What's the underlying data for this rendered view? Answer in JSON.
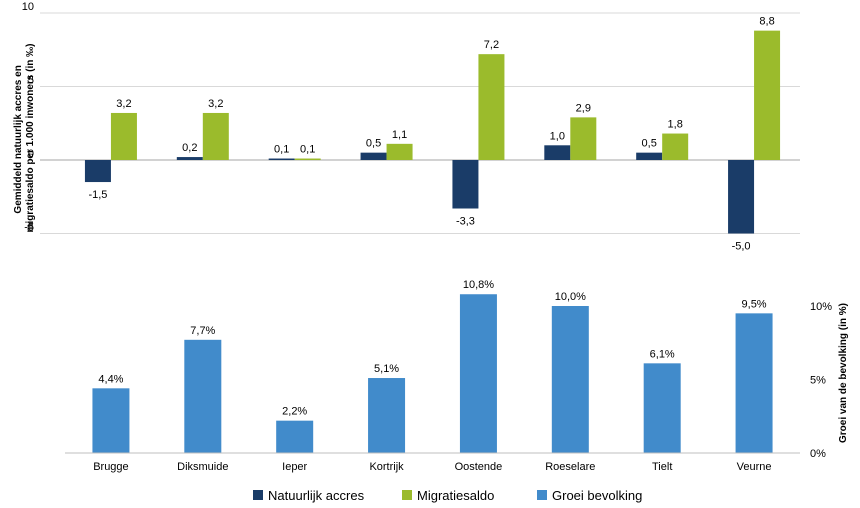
{
  "chart_data": [
    {
      "type": "bar",
      "categories": [
        "Brugge",
        "Diksmuide",
        "Ieper",
        "Kortrijk",
        "Oostende",
        "Roeselare",
        "Tielt",
        "Veurne"
      ],
      "ylabel_lines": [
        "Gemiddeld natuurlijk accres en",
        "migratiesaldo per 1.000 inwoners (in ‰)"
      ],
      "ylim": [
        -5,
        10
      ],
      "yticks": [
        10,
        5,
        0,
        -5
      ],
      "ytick_labels": [
        "10",
        "5",
        "0",
        "-5"
      ],
      "grid": true,
      "series": [
        {
          "name": "Natuurlijk accres",
          "color": "#1a3c68",
          "values": [
            -1.5,
            0.2,
            0.1,
            0.5,
            -3.3,
            1.0,
            0.5,
            -5.0
          ],
          "labels": [
            "-1,5",
            "0,2",
            "0,1",
            "0,5",
            "-3,3",
            "1,0",
            "0,5",
            "-5,0"
          ]
        },
        {
          "name": "Migratiesaldo",
          "color": "#9bbb2c",
          "values": [
            3.2,
            3.2,
            0.1,
            1.1,
            7.2,
            2.9,
            1.8,
            8.8
          ],
          "labels": [
            "3,2",
            "3,2",
            "0,1",
            "1,1",
            "7,2",
            "2,9",
            "1,8",
            "8,8"
          ]
        }
      ]
    },
    {
      "type": "bar",
      "categories": [
        "Brugge",
        "Diksmuide",
        "Ieper",
        "Kortrijk",
        "Oostende",
        "Roeselare",
        "Tielt",
        "Veurne"
      ],
      "ylabel": "Groei van de bevolking (in %)",
      "ylim": [
        0,
        10
      ],
      "yticks": [
        0,
        5,
        10
      ],
      "ytick_labels": [
        "0%",
        "5%",
        "10%"
      ],
      "y_axis_side": "right",
      "series": [
        {
          "name": "Groei bevolking",
          "color": "#418bcb",
          "values": [
            4.4,
            7.7,
            2.2,
            5.1,
            10.8,
            10.0,
            6.1,
            9.5
          ],
          "labels": [
            "4,4%",
            "7,7%",
            "2,2%",
            "5,1%",
            "10,8%",
            "10,0%",
            "6,1%",
            "9,5%"
          ]
        }
      ]
    }
  ],
  "legend": {
    "placement": "bottom",
    "items": [
      {
        "label": "Natuurlijk accres",
        "color": "#1a3c68"
      },
      {
        "label": "Migratiesaldo",
        "color": "#9bbb2c"
      },
      {
        "label": "Groei bevolking",
        "color": "#418bcb"
      }
    ]
  }
}
